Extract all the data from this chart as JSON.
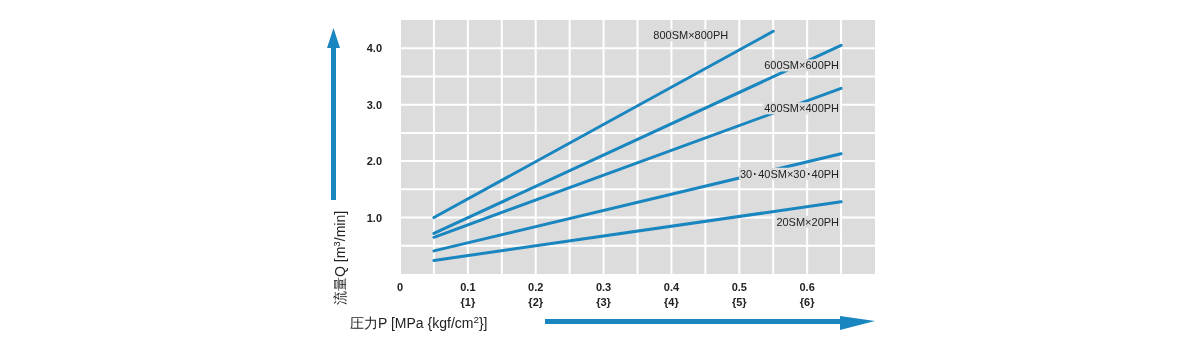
{
  "chart_data": {
    "type": "line",
    "xlabel": "圧力P [MPa {kgf/cm$^{2}$}]",
    "ylabel": "流量Q [m$^{3}$/min]",
    "series": [
      {
        "name": "800SM×800PH",
        "color": "#1a86c0",
        "x": [
          0.05,
          0.55
        ],
        "values": [
          1.0,
          4.3
        ]
      },
      {
        "name": "600SM×600PH",
        "color": "#1a86c0",
        "x": [
          0.05,
          0.65
        ],
        "values": [
          0.72,
          4.05
        ]
      },
      {
        "name": "400SM×400PH",
        "color": "#1a86c0",
        "x": [
          0.05,
          0.65
        ],
        "values": [
          0.65,
          3.29
        ]
      },
      {
        "name": "30･40SM×30･40PH",
        "color": "#1a86c0",
        "x": [
          0.05,
          0.65
        ],
        "values": [
          0.41,
          2.13
        ]
      },
      {
        "name": "20SM×20PH",
        "color": "#1a86c0",
        "x": [
          0.05,
          0.65
        ],
        "values": [
          0.24,
          1.28
        ]
      }
    ],
    "xlim": [
      0,
      0.7
    ],
    "xticks": [
      0,
      {
        "value": 0.05,
        "label": null
      },
      0.1,
      {
        "value": 0.15,
        "label": null
      },
      0.2,
      {
        "value": 0.25,
        "label": null
      },
      0.3,
      {
        "value": 0.35,
        "label": null
      },
      0.4,
      {
        "value": 0.45,
        "label": null
      },
      0.5,
      {
        "value": 0.55,
        "label": null
      },
      0.6,
      {
        "value": 0.65,
        "label": null
      }
    ],
    "x2lim": [
      0,
      7
    ],
    "x2ticks": [
      {
        "value": 1,
        "label": "{1}"
      },
      {
        "value": 2,
        "label": "{2}"
      },
      {
        "value": 3,
        "label": "{3}"
      },
      {
        "value": 4,
        "label": "{4}"
      },
      {
        "value": 5,
        "label": "{5}"
      },
      {
        "value": 6,
        "label": "{6}"
      }
    ],
    "ylim": [
      0,
      4.5
    ],
    "yticks": [
      {
        "value": 0.5,
        "label": null
      },
      {
        "value": 1,
        "label": "1.0"
      },
      {
        "value": 1.5,
        "label": null
      },
      {
        "value": 2,
        "label": "2.0"
      },
      {
        "value": 2.5,
        "label": null
      },
      {
        "value": 3,
        "label": "3.0"
      },
      {
        "value": 3.5,
        "label": null
      },
      {
        "value": 4,
        "label": "4.0"
      }
    ],
    "grid": true,
    "marker": "none",
    "line_style": "solid"
  }
}
